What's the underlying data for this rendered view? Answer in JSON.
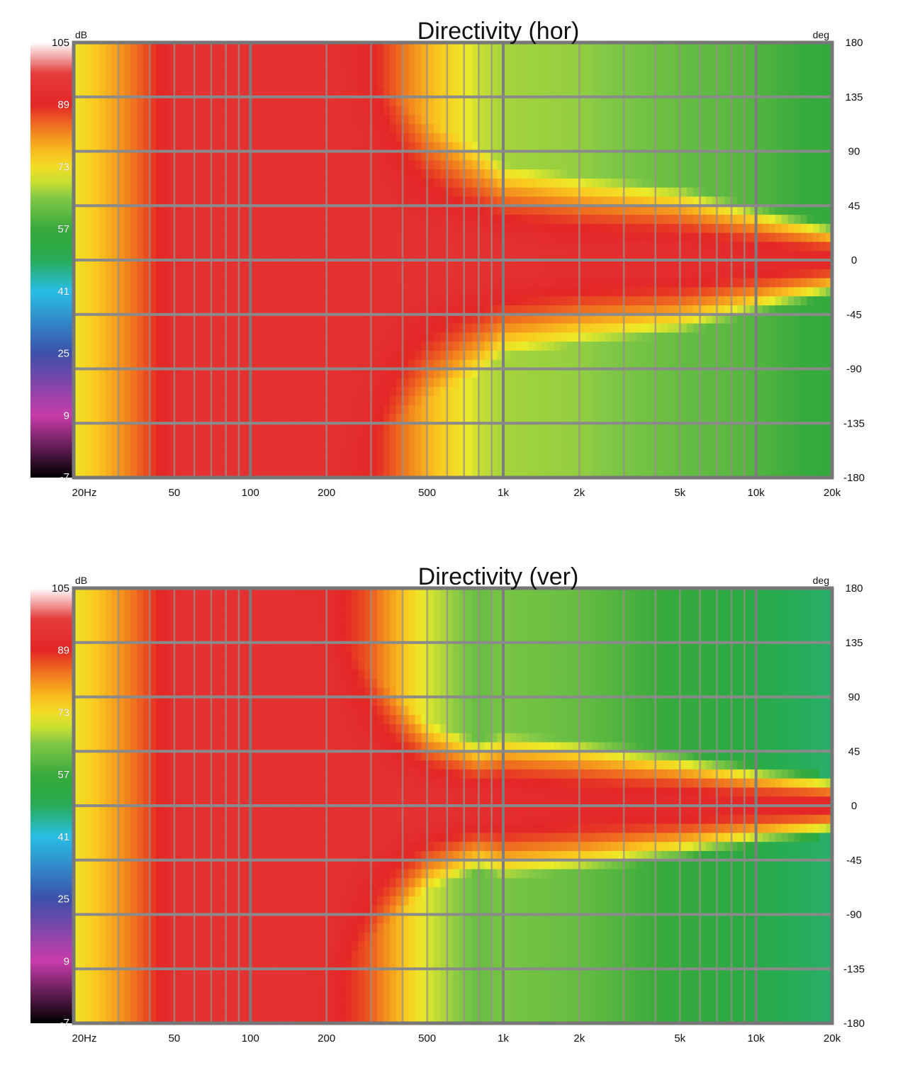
{
  "chart_data": [
    {
      "type": "heatmap",
      "title": "Directivity (hor)",
      "colorbar_unit": "dB",
      "colorbar_ticks": [
        "105",
        "89",
        "73",
        "57",
        "41",
        "25",
        "9",
        "-7"
      ],
      "colorbar_range": [
        -7,
        105
      ],
      "y_unit": "deg",
      "y_ticks": [
        "180",
        "135",
        "90",
        "45",
        "0",
        "-45",
        "-90",
        "-135",
        "-180"
      ],
      "y_range": [
        -180,
        180
      ],
      "x_scale": "log",
      "x_range": [
        20,
        20000
      ],
      "x_ticks": [
        "20Hz",
        "50",
        "100",
        "200",
        "500",
        "1k",
        "2k",
        "5k",
        "10k",
        "20k"
      ],
      "x_tick_values": [
        20,
        50,
        100,
        200,
        500,
        1000,
        2000,
        5000,
        10000,
        20000
      ],
      "grid": true,
      "level_profile": {
        "freq_hz": [
          20,
          30,
          40,
          50,
          60,
          100,
          200,
          300,
          500,
          800,
          1000,
          2000,
          5000,
          10000,
          20000
        ],
        "beamwidth_deg": [
          180,
          180,
          180,
          180,
          180,
          180,
          180,
          150,
          115,
          95,
          80,
          70,
          62,
          45,
          30
        ],
        "on_axis_db": [
          72,
          80,
          87,
          92,
          93,
          93,
          93,
          93,
          93,
          93,
          93,
          92,
          92,
          91,
          90
        ],
        "off_axis_db": [
          72,
          80,
          87,
          92,
          93,
          93,
          93,
          90,
          78,
          69,
          67,
          66,
          62,
          60,
          55
        ]
      }
    },
    {
      "type": "heatmap",
      "title": "Directivity (ver)",
      "colorbar_unit": "dB",
      "colorbar_ticks": [
        "105",
        "89",
        "73",
        "57",
        "41",
        "25",
        "9",
        "-7"
      ],
      "colorbar_range": [
        -7,
        105
      ],
      "y_unit": "deg",
      "y_ticks": [
        "180",
        "135",
        "90",
        "45",
        "0",
        "-45",
        "-90",
        "-135",
        "-180"
      ],
      "y_range": [
        -180,
        180
      ],
      "x_scale": "log",
      "x_range": [
        20,
        20000
      ],
      "x_ticks": [
        "20Hz",
        "50",
        "100",
        "200",
        "500",
        "1k",
        "2k",
        "5k",
        "10k",
        "20k"
      ],
      "x_tick_values": [
        20,
        50,
        100,
        200,
        500,
        1000,
        2000,
        5000,
        10000,
        20000
      ],
      "grid": true,
      "level_profile": {
        "freq_hz": [
          20,
          30,
          40,
          50,
          60,
          100,
          200,
          300,
          500,
          800,
          1000,
          2000,
          5000,
          10000,
          20000
        ],
        "beamwidth_deg": [
          180,
          180,
          180,
          180,
          180,
          180,
          150,
          110,
          70,
          55,
          60,
          55,
          45,
          35,
          25
        ],
        "on_axis_db": [
          72,
          80,
          87,
          92,
          93,
          93,
          93,
          93,
          93,
          92,
          92,
          91,
          91,
          90,
          90
        ],
        "off_axis_db": [
          72,
          80,
          87,
          92,
          93,
          93,
          92,
          85,
          70,
          62,
          64,
          62,
          56,
          50,
          48
        ]
      }
    }
  ]
}
